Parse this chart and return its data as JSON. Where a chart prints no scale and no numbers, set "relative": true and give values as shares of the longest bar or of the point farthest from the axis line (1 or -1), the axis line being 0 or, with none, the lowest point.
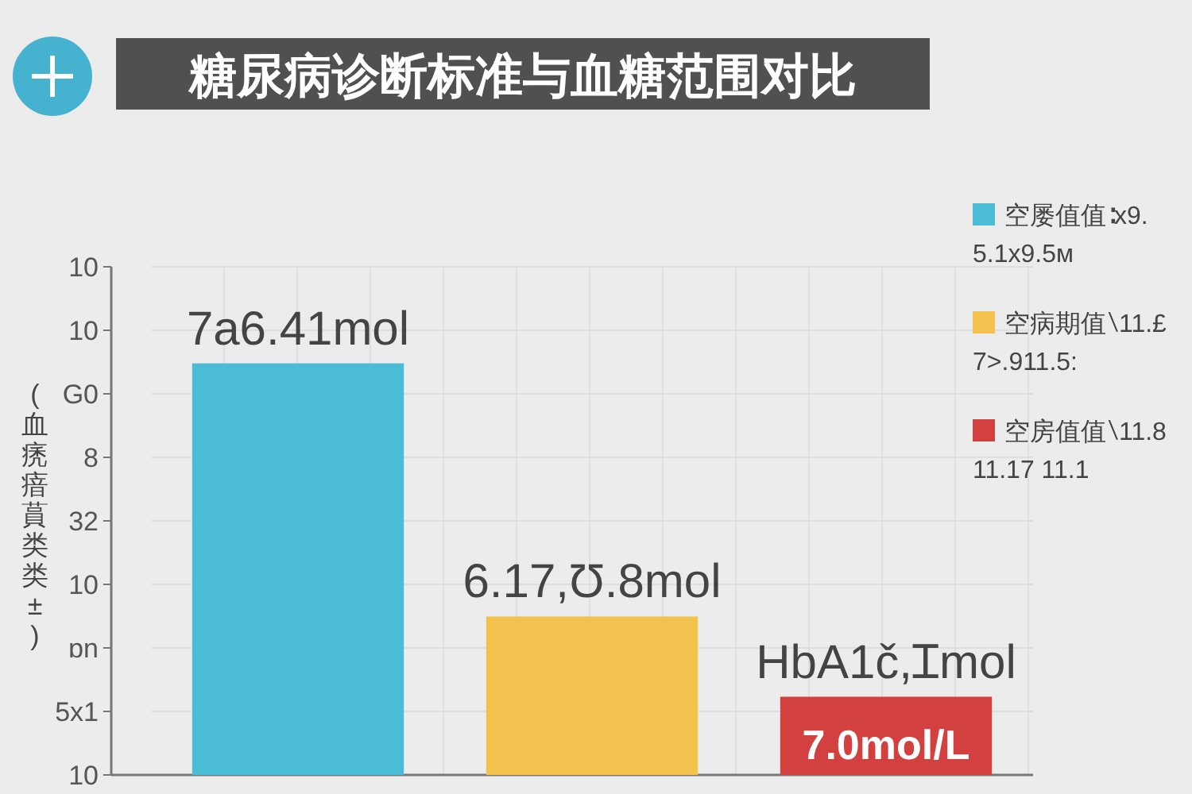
{
  "chart_data": {
    "type": "bar",
    "title": "糖尿病诊断标准与血糖范围对比",
    "ylabel": "(血痜瘖蒷类类±)",
    "categories": [
      null,
      null,
      null
    ],
    "relative": true,
    "values": [
      1,
      0.385,
      0.19
    ],
    "colors": [
      "#4bbcd6",
      "#f2c14e",
      "#d2403f"
    ],
    "annotations": [
      "10",
      "10",
      "G0",
      "8",
      "32",
      "10",
      "ɒn",
      "5x1",
      "10",
      "7a6.41mol",
      "6.17,Ʊ.8mol",
      "HbA1č,Ɪmol",
      "7.0mol/L",
      "空屡值值∶x9.\n5.1x9.5м",
      "空病期值∖11.£\n7>.911.5:",
      "空房值值∖11.8\n11.17 11.1"
    ],
    "grid": true
  }
}
